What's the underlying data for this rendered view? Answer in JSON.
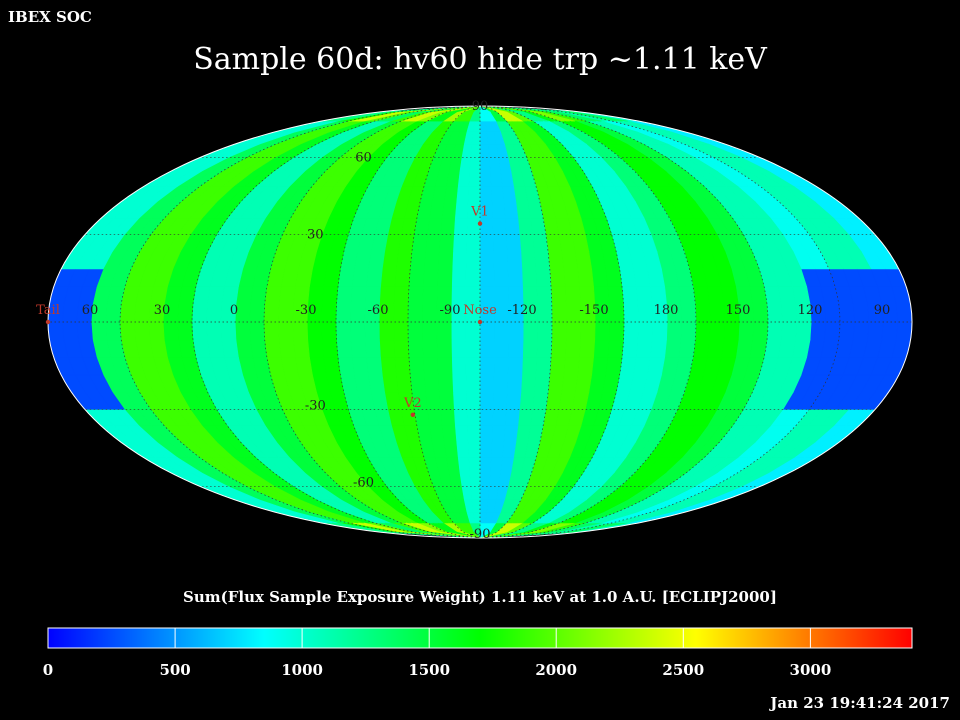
{
  "header": {
    "org_label": "IBEX SOC",
    "title": "Sample 60d: hv60 hide trp ~1.11 keV",
    "timestamp": "Jan 23 19:41:24 2017"
  },
  "chart_data": {
    "type": "heatmap",
    "projection": "mollweide",
    "frame": "ECLIPJ2000",
    "title": "Sample 60d: hv60 hide trp ~1.11 keV",
    "colorbar_label": "Sum(Flux Sample Exposure Weight)  1.11 keV at 1.0 A.U. [ECLIPJ2000]",
    "colorbar_range": [
      0,
      3400
    ],
    "colorbar_ticks": [
      0,
      500,
      1000,
      1500,
      2000,
      2500,
      3000
    ],
    "colormap": [
      "#0000ff",
      "#00ffff",
      "#00ff00",
      "#ffff00",
      "#ff0000"
    ],
    "longitude_labels": [
      {
        "text": "60",
        "lon": 60
      },
      {
        "text": "30",
        "lon": 30
      },
      {
        "text": "0",
        "lon": 0
      },
      {
        "text": "-30",
        "lon": -30
      },
      {
        "text": "-60",
        "lon": -60
      },
      {
        "text": "-90",
        "lon": -90
      },
      {
        "text": "-120",
        "lon": -120
      },
      {
        "text": "-150",
        "lon": -150
      },
      {
        "text": "180",
        "lon": 180
      },
      {
        "text": "150",
        "lon": 150
      },
      {
        "text": "120",
        "lon": 120
      },
      {
        "text": "90",
        "lon": 90
      }
    ],
    "latitude_labels": [
      {
        "text": "90",
        "lat": 90
      },
      {
        "text": "60",
        "lat": 60
      },
      {
        "text": "30",
        "lat": 30
      },
      {
        "text": "-30",
        "lat": -30
      },
      {
        "text": "-60",
        "lat": -60
      },
      {
        "text": "-90",
        "lat": -90
      }
    ],
    "markers": [
      {
        "name": "V1",
        "lon": -105,
        "lat": 34
      },
      {
        "name": "Nose",
        "lon": -105,
        "lat": 0
      },
      {
        "name": "V2",
        "lon": -74,
        "lat": -32
      },
      {
        "name": "Tail",
        "lon": 75,
        "lat": 0
      }
    ],
    "longitude_band_values": [
      {
        "lon_start": -255,
        "lon_end": -240,
        "value": 900
      },
      {
        "lon_start": -240,
        "lon_end": -225,
        "value": 1100
      },
      {
        "lon_start": -225,
        "lon_end": -210,
        "value": 1500
      },
      {
        "lon_start": -210,
        "lon_end": -195,
        "value": 1700
      },
      {
        "lon_start": -195,
        "lon_end": -180,
        "value": 1300
      },
      {
        "lon_start": -180,
        "lon_end": -165,
        "value": 1000
      },
      {
        "lon_start": -165,
        "lon_end": -150,
        "value": 1600
      },
      {
        "lon_start": -150,
        "lon_end": -135,
        "value": 1900
      },
      {
        "lon_start": -135,
        "lon_end": -120,
        "value": 1200
      },
      {
        "lon_start": -120,
        "lon_end": -105,
        "value": 700
      },
      {
        "lon_start": -105,
        "lon_end": -90,
        "value": 1000
      },
      {
        "lon_start": -90,
        "lon_end": -75,
        "value": 1500
      },
      {
        "lon_start": -75,
        "lon_end": -60,
        "value": 1800
      },
      {
        "lon_start": -60,
        "lon_end": -45,
        "value": 1300
      },
      {
        "lon_start": -45,
        "lon_end": -30,
        "value": 1700
      },
      {
        "lon_start": -30,
        "lon_end": -15,
        "value": 1900
      },
      {
        "lon_start": -15,
        "lon_end": 0,
        "value": 1500
      },
      {
        "lon_start": 0,
        "lon_end": 15,
        "value": 1100
      },
      {
        "lon_start": 15,
        "lon_end": 30,
        "value": 1600
      },
      {
        "lon_start": 30,
        "lon_end": 45,
        "value": 1900
      },
      {
        "lon_start": 45,
        "lon_end": 60,
        "value": 1400
      },
      {
        "lon_start": 60,
        "lon_end": 75,
        "value": 1000
      },
      {
        "lon_start": 75,
        "lon_end": 90,
        "value": 800
      },
      {
        "lon_start": 90,
        "lon_end": 105,
        "value": 1100
      }
    ],
    "low_flux_region": {
      "lon_range": [
        55,
        115
      ],
      "lat_range": [
        -30,
        20
      ],
      "value": 250
    }
  }
}
